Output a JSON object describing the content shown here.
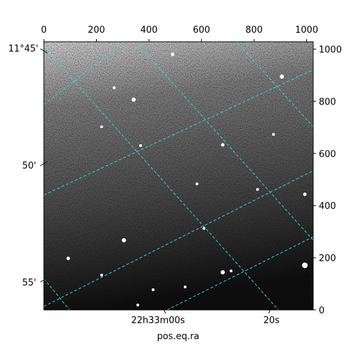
{
  "chart_data": {
    "type": "image",
    "xlabel": "pos.eq.ra",
    "xlim": [
      0,
      1025
    ],
    "xticks": [
      0,
      200,
      400,
      600,
      800,
      1000
    ],
    "ylim": [
      0,
      1028
    ],
    "yticks": [
      0,
      200,
      400,
      600,
      800,
      1000
    ],
    "dec_labels": [
      "11°45'",
      "50'",
      "55'"
    ],
    "ra_labels": [
      "22h33m00s",
      "20s"
    ],
    "colormap": "gray"
  }
}
